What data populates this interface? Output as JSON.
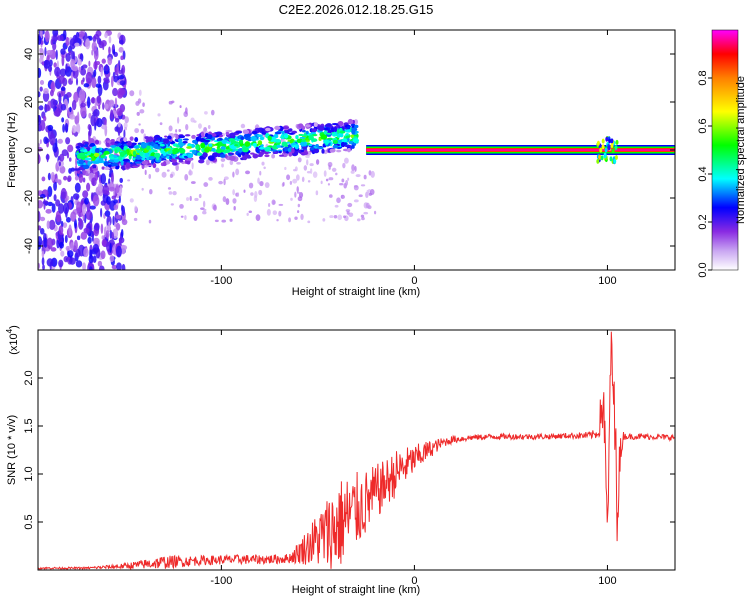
{
  "title": "C2E2.2026.012.18.25.G15",
  "chart_data": [
    {
      "type": "heatmap",
      "xlabel": "Height of straight line (km)",
      "ylabel": "Frequency (Hz)",
      "xlim": [
        -195,
        135
      ],
      "ylim": [
        -50,
        50
      ],
      "x_ticks": [
        -100,
        0,
        100
      ],
      "y_ticks": [
        -40,
        -20,
        0,
        20,
        40
      ],
      "colorbar": {
        "label": "Normalized spectral amplitude",
        "range": [
          0,
          1
        ],
        "ticks": [
          "0.0",
          "0.2",
          "0.4",
          "0.6",
          "0.8"
        ],
        "tick_values": [
          0,
          0.2,
          0.4,
          0.6,
          0.8
        ],
        "colors": [
          "#ffffff",
          "#8a2be2",
          "#0000ff",
          "#00ffff",
          "#00ff00",
          "#ffff00",
          "#ff8000",
          "#ff0000",
          "#ff00ff"
        ]
      },
      "features": [
        {
          "name": "broadband noise",
          "x_range": [
            -195,
            -150
          ],
          "y_range": [
            -50,
            50
          ],
          "amplitude": 0.15
        },
        {
          "name": "rising band",
          "x_range": [
            -175,
            -30
          ],
          "y_start": -3,
          "y_end": 6,
          "amplitude": 0.4
        },
        {
          "name": "carrier line",
          "x_range": [
            -25,
            135
          ],
          "y": 0,
          "amplitude": 0.95
        },
        {
          "name": "disturbance",
          "x_range": [
            95,
            105
          ],
          "y_range": [
            -5,
            5
          ],
          "amplitude": 0.5
        }
      ]
    },
    {
      "type": "line",
      "xlabel": "Height of straight line (km)",
      "ylabel": "SNR (10 * v/v)",
      "exponent_label": "(x10",
      "exponent_sup": "4",
      "exponent_close": ")",
      "xlim": [
        -195,
        135
      ],
      "ylim": [
        0,
        2.5
      ],
      "x_ticks": [
        -100,
        0,
        100
      ],
      "y_ticks": [
        0.5,
        1.0,
        1.5,
        2.0
      ],
      "y_tick_labels": [
        "0.5",
        "1.0",
        "1.5",
        "2.0"
      ],
      "color": "#ee2a2a",
      "series": [
        {
          "name": "SNR",
          "x": [
            -195,
            -170,
            -150,
            -130,
            -110,
            -90,
            -75,
            -65,
            -60,
            -55,
            -50,
            -45,
            -40,
            -35,
            -30,
            -25,
            -20,
            -15,
            -10,
            -5,
            0,
            5,
            10,
            15,
            20,
            30,
            40,
            50,
            60,
            70,
            80,
            90,
            95,
            98,
            100,
            102,
            105,
            108,
            110,
            120,
            135
          ],
          "values": [
            0.02,
            0.02,
            0.04,
            0.08,
            0.1,
            0.11,
            0.11,
            0.12,
            0.18,
            0.25,
            0.32,
            0.38,
            0.45,
            0.55,
            0.62,
            0.7,
            0.8,
            0.9,
            1.0,
            1.08,
            1.15,
            1.22,
            1.28,
            1.33,
            1.36,
            1.38,
            1.39,
            1.39,
            1.39,
            1.39,
            1.4,
            1.4,
            1.42,
            1.8,
            0.35,
            2.4,
            0.8,
            1.4,
            1.39,
            1.39,
            1.38
          ],
          "noise": [
            0.01,
            0.01,
            0.03,
            0.07,
            0.05,
            0.05,
            0.05,
            0.05,
            0.12,
            0.2,
            0.3,
            0.4,
            0.5,
            0.45,
            0.4,
            0.35,
            0.3,
            0.25,
            0.25,
            0.2,
            0.15,
            0.12,
            0.08,
            0.05,
            0.04,
            0.03,
            0.03,
            0.03,
            0.03,
            0.03,
            0.03,
            0.04,
            0.05,
            0.4,
            0.2,
            0.3,
            0.5,
            0.05,
            0.03,
            0.03,
            0.03
          ]
        }
      ]
    }
  ]
}
